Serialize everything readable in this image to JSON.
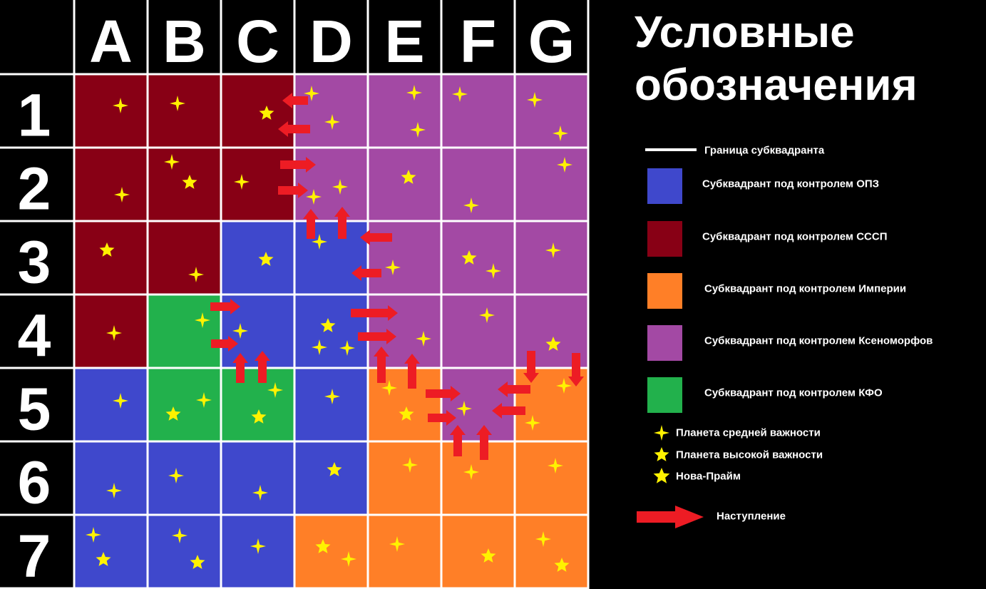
{
  "columns": [
    "A",
    "B",
    "C",
    "D",
    "E",
    "F",
    "G"
  ],
  "rows": [
    "1",
    "2",
    "3",
    "4",
    "5",
    "6",
    "7"
  ],
  "cells": [
    [
      "#880015",
      "#880015",
      "#880015",
      "#a349a4",
      "#a349a4",
      "#a349a4",
      "#a349a4"
    ],
    [
      "#880015",
      "#880015",
      "#880015",
      "#a349a4",
      "#a349a4",
      "#a349a4",
      "#a349a4"
    ],
    [
      "#880015",
      "#880015",
      "#3f48cc",
      "#3f48cc",
      "#a349a4",
      "#a349a4",
      "#a349a4"
    ],
    [
      "#880015",
      "#22b14c",
      "#3f48cc",
      "#3f48cc",
      "#a349a4",
      "#a349a4",
      "#a349a4"
    ],
    [
      "#3f48cc",
      "#22b14c",
      "#22b14c",
      "#3f48cc",
      "#ff7f27",
      "#a349a4",
      "#ff7f27"
    ],
    [
      "#3f48cc",
      "#3f48cc",
      "#3f48cc",
      "#3f48cc",
      "#ff7f27",
      "#ff7f27",
      "#ff7f27"
    ],
    [
      "#3f48cc",
      "#3f48cc",
      "#3f48cc",
      "#ff7f27",
      "#ff7f27",
      "#ff7f27",
      "#ff7f27"
    ]
  ],
  "legend": {
    "title": [
      "Условные",
      "обозначения"
    ],
    "border": "Граница субквадранта",
    "factions": [
      {
        "label": "Субквадрант под контролем ОПЗ",
        "color": "#3f48cc"
      },
      {
        "label": "Субквадрант под контролем СССП",
        "color": "#880015"
      },
      {
        "label": "Субквадрант под контролем Империи",
        "color": "#ff7f27"
      },
      {
        "label": "Субквадрант под контролем Ксеноморфов",
        "color": "#a349a4"
      },
      {
        "label": "Субквадрант под контролем КФО",
        "color": "#22b14c"
      }
    ],
    "planets": [
      "Планета средней важности",
      "Планета высокой важности",
      "Нова-Прайм"
    ],
    "offensive": "Наступление"
  }
}
